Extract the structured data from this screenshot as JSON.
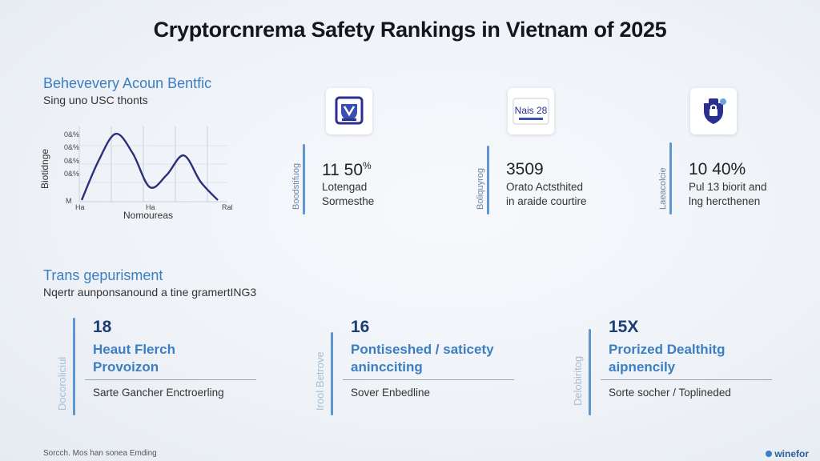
{
  "title": "Cryptorcnrema Safety Rankings in Vietnam of 2025",
  "chart": {
    "heading": "Behevevery Acoun Bentfic",
    "subheading": "Sing uno USC thonts",
    "ylabel": "Biotidnge",
    "xlabel": "Nomoureas",
    "y_ticks": [
      "0&%",
      "0&%",
      "0&%",
      "0&%",
      "M"
    ],
    "x_ticks": [
      "Ha",
      "Ha",
      "Ral"
    ],
    "line_color": "#2a2f7a",
    "chart_data": {
      "type": "line",
      "x": [
        0,
        1,
        2,
        3,
        4,
        5,
        6,
        7,
        8
      ],
      "series": [
        {
          "values": [
            0.0,
            0.55,
            0.92,
            0.65,
            0.18,
            0.35,
            0.62,
            0.25,
            0.0
          ]
        }
      ],
      "ylim": [
        0,
        1
      ],
      "grid": true
    }
  },
  "top_cards": [
    {
      "icon": "shield-vote-icon",
      "icon_text": "",
      "side_label": "Boodstifuog",
      "value": "11 50",
      "value_sup": "%",
      "desc_line1": "Lotengad",
      "desc_line2": "Sormesthe"
    },
    {
      "icon": "date-badge-icon",
      "icon_text": "Nais 28",
      "side_label": "Boliquyrog",
      "value": "3509",
      "value_sup": "",
      "desc_line1": "Orato Actsthited",
      "desc_line2": "in araide courtire"
    },
    {
      "icon": "shield-lock-icon",
      "icon_text": "",
      "side_label": "Laeacolcie",
      "value": "10 40%",
      "value_sup": "",
      "desc_line1": "Pul 13 biorit and",
      "desc_line2": "lng hercthenen"
    }
  ],
  "section": {
    "heading": "Trans gepurisment",
    "sub": "Nqertr aunponsanound a tine gramertING3"
  },
  "bottom_cards": [
    {
      "side_label": "Docoroliciul",
      "number": "18",
      "title_line1": "Heaut Flerch",
      "title_line2": "Provoizon",
      "footer": "Sarte Gancher Enctroerling"
    },
    {
      "side_label": "Irool Betrove",
      "number": "16",
      "title_line1": "Pontiseshed / saticety",
      "title_line2": "anincciting",
      "footer": "Sover Enbedline"
    },
    {
      "side_label": "Delobiritog",
      "number": "15X",
      "title_line1": "Prorized Dealthitg",
      "title_line2": "aipnencily",
      "footer": "Sorte socher / Toplineded"
    }
  ],
  "footer": {
    "left": "Sorcch. Mos han sonea Emding",
    "logo": "winefor"
  },
  "colors": {
    "accent": "#3b7ec2",
    "bar": "#5f96cf",
    "icon_navy": "#2b2f8f"
  }
}
